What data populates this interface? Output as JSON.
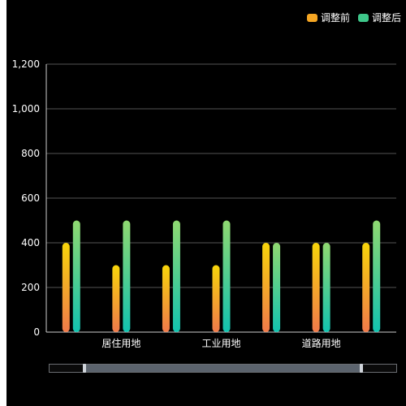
{
  "legend": [
    {
      "label": "调整前",
      "color": "#f5a623"
    },
    {
      "label": "调整后",
      "color": "#3ec78a"
    }
  ],
  "chart_data": {
    "type": "bar",
    "categories": [
      "",
      "居住用地",
      "",
      "工业用地",
      "",
      "道路用地",
      ""
    ],
    "series": [
      {
        "name": "调整前",
        "values": [
          400,
          300,
          300,
          300,
          400,
          400,
          400
        ],
        "gradient": [
          "#f7d40a",
          "#f07a4a"
        ]
      },
      {
        "name": "调整后",
        "values": [
          500,
          500,
          500,
          500,
          400,
          400,
          500
        ],
        "gradient": [
          "#8fd870",
          "#12c2b0"
        ]
      }
    ],
    "ylim": [
      0,
      1200
    ],
    "yticks": [
      0,
      200,
      400,
      600,
      800,
      1000,
      1200
    ],
    "ytick_labels": [
      "0",
      "200",
      "400",
      "600",
      "800",
      "1,000",
      "1,200"
    ],
    "grid": true,
    "legend_position": "top-right"
  },
  "zoom": {
    "start": 0.1,
    "end": 0.9
  }
}
